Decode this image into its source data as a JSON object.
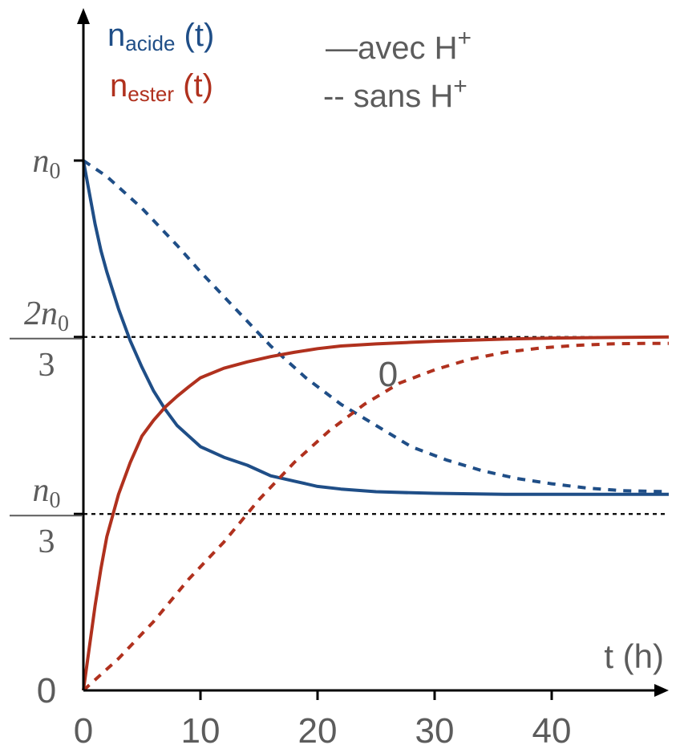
{
  "chart_data": {
    "type": "line",
    "xlabel": "t (h)",
    "ylabel": "",
    "xlim": [
      0,
      50
    ],
    "ylim": [
      0,
      1
    ],
    "y_unit": "n0",
    "x_ticks": [
      "0",
      "10",
      "20",
      "30",
      "40"
    ],
    "y_ticks": [
      {
        "value": 0,
        "label": "0"
      },
      {
        "value": 0.333,
        "num": "n",
        "sub": "0",
        "den": "3"
      },
      {
        "value": 0.667,
        "num": "2n",
        "sub": "0",
        "den": "3"
      },
      {
        "value": 1,
        "num": "n",
        "sub": "0",
        "den": ""
      }
    ],
    "reference_lines": [
      0.333,
      0.667
    ],
    "legend": {
      "series": [
        {
          "main": "n",
          "sub": "acide",
          "suffix": " (t)",
          "color": "#1f4e87"
        },
        {
          "main": "n",
          "sub": "ester",
          "suffix": " (t)",
          "color": "#b0311e"
        }
      ],
      "styles": [
        {
          "symbol": "—",
          "text": "avec H",
          "sup": "+"
        },
        {
          "symbol": "--",
          "text": " sans H",
          "sup": "+"
        }
      ]
    },
    "annotation": "0",
    "series": [
      {
        "key": "acide_avec",
        "color": "#1f4e87",
        "dash": false,
        "x": [
          0,
          0.5,
          1,
          1.5,
          2,
          3,
          4,
          5,
          6,
          7,
          8,
          9,
          10,
          12,
          14,
          16,
          18,
          20,
          22,
          25,
          28,
          30,
          33,
          36,
          40,
          45,
          50
        ],
        "y": [
          1.0,
          0.94,
          0.88,
          0.83,
          0.79,
          0.72,
          0.66,
          0.61,
          0.565,
          0.53,
          0.5,
          0.48,
          0.46,
          0.44,
          0.425,
          0.405,
          0.395,
          0.385,
          0.38,
          0.375,
          0.373,
          0.372,
          0.371,
          0.37,
          0.37,
          0.37,
          0.37
        ]
      },
      {
        "key": "acide_sans",
        "color": "#1f4e87",
        "dash": true,
        "x": [
          0,
          2,
          5,
          8,
          10,
          13,
          16,
          19,
          22,
          25,
          28,
          31,
          34,
          37,
          40,
          43,
          46,
          50
        ],
        "y": [
          1.0,
          0.97,
          0.91,
          0.84,
          0.79,
          0.72,
          0.65,
          0.59,
          0.54,
          0.5,
          0.46,
          0.435,
          0.415,
          0.4,
          0.39,
          0.382,
          0.377,
          0.375
        ]
      },
      {
        "key": "ester_avec",
        "color": "#b0311e",
        "dash": false,
        "x": [
          0,
          0.5,
          1,
          1.5,
          2,
          3,
          4,
          5,
          6,
          7,
          8,
          9,
          10,
          12,
          14,
          16,
          18,
          20,
          22,
          25,
          28,
          30,
          33,
          36,
          40,
          45,
          50
        ],
        "y": [
          0.0,
          0.08,
          0.16,
          0.23,
          0.29,
          0.37,
          0.43,
          0.48,
          0.51,
          0.535,
          0.555,
          0.573,
          0.59,
          0.608,
          0.62,
          0.63,
          0.638,
          0.645,
          0.65,
          0.654,
          0.657,
          0.659,
          0.661,
          0.663,
          0.665,
          0.666,
          0.667
        ]
      },
      {
        "key": "ester_sans",
        "color": "#b0311e",
        "dash": true,
        "x": [
          0,
          3,
          6,
          9,
          12,
          15,
          18,
          21,
          24,
          27,
          30,
          33,
          36,
          39,
          42,
          45,
          48,
          50
        ],
        "y": [
          0.0,
          0.06,
          0.13,
          0.21,
          0.28,
          0.36,
          0.43,
          0.49,
          0.54,
          0.58,
          0.605,
          0.625,
          0.638,
          0.646,
          0.651,
          0.654,
          0.655,
          0.655
        ]
      }
    ]
  }
}
